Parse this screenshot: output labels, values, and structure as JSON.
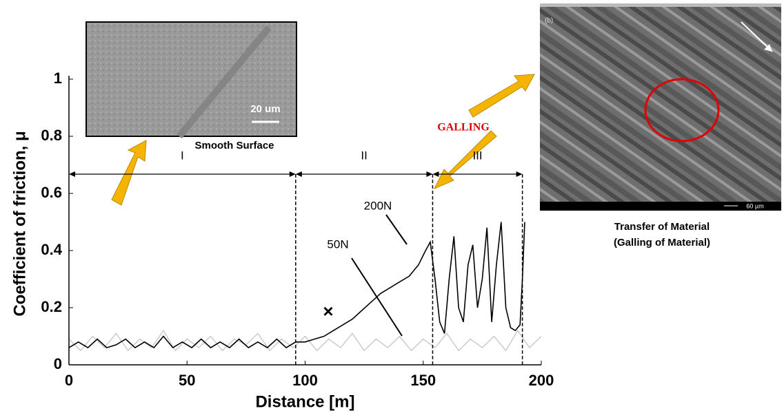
{
  "chart_data": {
    "type": "line",
    "xlabel": "Distance [m]",
    "ylabel": "Coefficient of friction, μ",
    "xlim": [
      0,
      200
    ],
    "xticks": [
      0,
      50,
      100,
      150,
      200
    ],
    "ylim": [
      0,
      1
    ],
    "yticks": [
      0,
      0.2,
      0.4,
      0.6,
      0.8,
      1
    ],
    "series": [
      {
        "name": "50N",
        "color": "#c8c8c8",
        "x": [
          0,
          5,
          10,
          15,
          20,
          25,
          30,
          35,
          40,
          45,
          50,
          55,
          60,
          65,
          70,
          75,
          80,
          85,
          90,
          95,
          100,
          105,
          110,
          115,
          120,
          125,
          130,
          135,
          140,
          145,
          150,
          155,
          160,
          165,
          170,
          175,
          180,
          185,
          190,
          195,
          200
        ],
        "values": [
          0.09,
          0.05,
          0.1,
          0.06,
          0.11,
          0.05,
          0.09,
          0.06,
          0.12,
          0.05,
          0.09,
          0.06,
          0.1,
          0.05,
          0.09,
          0.07,
          0.11,
          0.05,
          0.09,
          0.06,
          0.1,
          0.05,
          0.09,
          0.06,
          0.11,
          0.05,
          0.09,
          0.06,
          0.1,
          0.05,
          0.09,
          0.06,
          0.11,
          0.05,
          0.09,
          0.06,
          0.1,
          0.05,
          0.12,
          0.06,
          0.1
        ]
      },
      {
        "name": "200N",
        "color": "#000000",
        "x": [
          0,
          4,
          8,
          12,
          16,
          20,
          24,
          28,
          32,
          36,
          40,
          44,
          48,
          52,
          56,
          60,
          64,
          68,
          72,
          76,
          80,
          84,
          88,
          92,
          96,
          100,
          104,
          108,
          112,
          116,
          120,
          124,
          128,
          132,
          136,
          140,
          144,
          148,
          151,
          153,
          155,
          157,
          159,
          161,
          163,
          165,
          167,
          169,
          171,
          173,
          175,
          177,
          179,
          181,
          183,
          185,
          187,
          189,
          191,
          192,
          193
        ],
        "values": [
          0.06,
          0.08,
          0.06,
          0.09,
          0.06,
          0.07,
          0.09,
          0.06,
          0.08,
          0.06,
          0.1,
          0.06,
          0.08,
          0.06,
          0.09,
          0.06,
          0.08,
          0.06,
          0.09,
          0.06,
          0.08,
          0.06,
          0.09,
          0.06,
          0.08,
          0.08,
          0.09,
          0.1,
          0.12,
          0.14,
          0.16,
          0.19,
          0.22,
          0.25,
          0.27,
          0.29,
          0.31,
          0.35,
          0.4,
          0.43,
          0.3,
          0.15,
          0.11,
          0.3,
          0.45,
          0.2,
          0.15,
          0.35,
          0.42,
          0.2,
          0.3,
          0.48,
          0.15,
          0.35,
          0.5,
          0.2,
          0.13,
          0.12,
          0.14,
          0.3,
          0.5
        ]
      }
    ],
    "regions": [
      {
        "label": "I",
        "start": 0,
        "end": 96
      },
      {
        "label": "II",
        "start": 96,
        "end": 154
      },
      {
        "label": "III",
        "start": 154,
        "end": 192
      }
    ],
    "annotations": [
      {
        "text": "200N"
      },
      {
        "text": "50N"
      },
      {
        "text": "×"
      },
      {
        "text": "GALLING"
      },
      {
        "text": "Smooth Surface"
      },
      {
        "text": "Transfer of Material"
      },
      {
        "text": "(Galling of Material)"
      },
      {
        "text": "20 um"
      },
      {
        "text": "60 µm"
      },
      {
        "text": "(b)"
      }
    ]
  }
}
